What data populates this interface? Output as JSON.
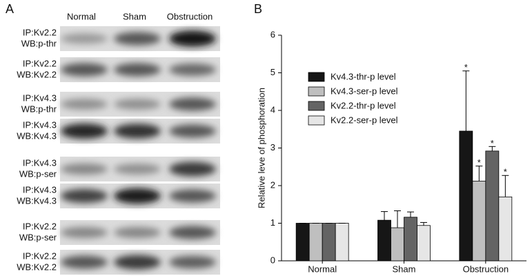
{
  "panel_a": {
    "panel_label": "A",
    "columns": [
      "Normal",
      "Sham",
      "Obstruction"
    ],
    "rows": [
      [
        "IP:Kv2.2",
        "WB:p-thr"
      ],
      [
        "IP:Kv2.2",
        "WB:Kv2.2"
      ],
      [
        "IP:Kv4.3",
        "WB:p-thr"
      ],
      [
        "IP:Kv4.3",
        "WB:Kv4.3"
      ],
      [
        "IP:Kv4.3",
        "WB:p-ser"
      ],
      [
        "IP:Kv4.3",
        "WB:Kv4.3"
      ],
      [
        "IP:Kv2.2",
        "WB:p-ser"
      ],
      [
        "IP:Kv2.2",
        "WB:Kv2.2"
      ]
    ]
  },
  "chart_data": {
    "type": "bar",
    "panel_label": "B",
    "y_label": "Relative leve of phosphoration",
    "categories": [
      "Normal",
      "Sham",
      "Obstruction"
    ],
    "series": [
      {
        "name": "Kv4.3-thr-p level",
        "color": "#161616",
        "values": [
          1,
          1.08,
          3.45
        ],
        "errors": [
          0,
          0.23,
          1.6
        ]
      },
      {
        "name": "Kv4.3-ser-p level",
        "color": "#bfbfbf",
        "values": [
          1,
          0.88,
          2.12
        ],
        "errors": [
          0,
          0.45,
          0.4
        ]
      },
      {
        "name": "Kv2.2-thr-p level",
        "color": "#646464",
        "values": [
          1,
          1.16,
          2.92
        ],
        "errors": [
          0,
          0.14,
          0.12
        ]
      },
      {
        "name": "Kv2.2-ser-p level",
        "color": "#e6e6e6",
        "values": [
          1,
          0.94,
          1.7
        ],
        "errors": [
          0,
          0.08,
          0.57
        ]
      }
    ],
    "annotations": [
      {
        "text": "*",
        "series": 0,
        "category": 2
      },
      {
        "text": "*",
        "series": 1,
        "category": 2
      },
      {
        "text": "*",
        "series": 2,
        "category": 2
      },
      {
        "text": "*",
        "series": 3,
        "category": 2
      }
    ],
    "ylim": [
      0,
      6
    ],
    "yticks": [
      0,
      1,
      2,
      3,
      4,
      5,
      6
    ],
    "legend": "upper-left"
  }
}
